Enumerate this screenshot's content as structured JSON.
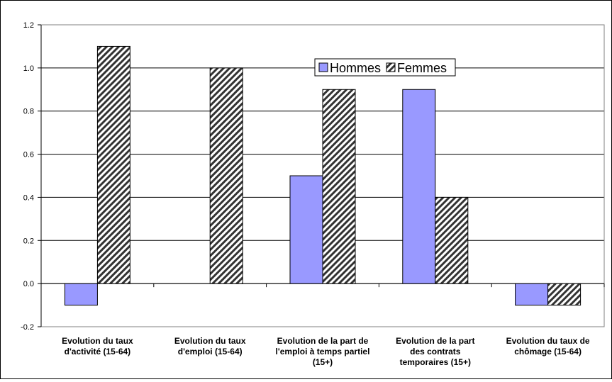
{
  "chart_data": {
    "type": "bar",
    "categories": [
      [
        "Evolution du taux",
        "d'activité (15-64)"
      ],
      [
        "Evolution du taux",
        "d'emploi (15-64)"
      ],
      [
        "Evolution de la part de",
        "l'emploi à temps partiel",
        "(15+)"
      ],
      [
        "Evolution de la part",
        "des contrats",
        "temporaires (15+)"
      ],
      [
        "Evolution du taux de",
        "chômage (15-64)"
      ]
    ],
    "series": [
      {
        "name": "Hommes",
        "values": [
          -0.1,
          0.0,
          0.5,
          0.9,
          -0.1
        ],
        "color": "#9999ff",
        "pattern": "solid"
      },
      {
        "name": "Femmes",
        "values": [
          1.1,
          1.0,
          0.9,
          0.4,
          -0.1
        ],
        "color": "#333333",
        "pattern": "diagonal-hatch"
      }
    ],
    "ylim": [
      -0.2,
      1.2
    ],
    "yticks": [
      "-0.2",
      "0.0",
      "0.2",
      "0.4",
      "0.6",
      "0.8",
      "1.0",
      "1.2"
    ],
    "grid": true,
    "legend_position": "top-center",
    "title": "",
    "xlabel": "",
    "ylabel": ""
  }
}
